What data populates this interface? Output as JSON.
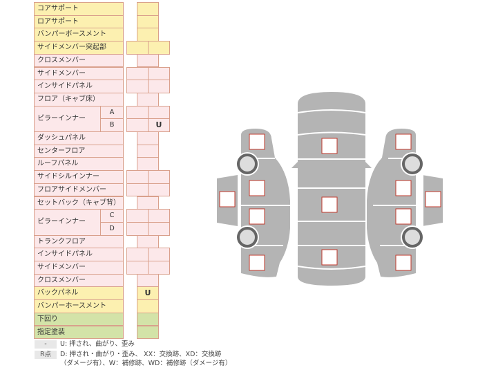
{
  "colors": {
    "yellow": "#fcf0b0",
    "pink": "#fce8ea",
    "green": "#d3e3a8",
    "border": "#d9a08c",
    "car": "#b4b4b4",
    "marker": "#c0392b"
  },
  "rows": [
    {
      "label": "コアサポート",
      "color": "yellow",
      "type": "single",
      "value": ""
    },
    {
      "label": "ロアサポート",
      "color": "yellow",
      "type": "single",
      "value": ""
    },
    {
      "label": "バンパーボースメント",
      "color": "yellow",
      "type": "single",
      "value": ""
    },
    {
      "label": "サイドメンバー突起部",
      "color": "yellow",
      "type": "double",
      "left": "",
      "right": ""
    },
    {
      "label": "クロスメンバー",
      "color": "pink",
      "type": "single",
      "value": ""
    },
    {
      "label": "サイドメンバー",
      "color": "pink",
      "type": "double",
      "left": "",
      "right": ""
    },
    {
      "label": "インサイドパネル",
      "color": "pink",
      "type": "double",
      "left": "",
      "right": ""
    },
    {
      "label": "フロア（キャブ床）",
      "color": "pink",
      "type": "single",
      "value": ""
    },
    {
      "label": "ピラーインナー",
      "color": "pink",
      "type": "pillar",
      "subs": [
        {
          "sub": "A",
          "left": "",
          "right": ""
        },
        {
          "sub": "B",
          "left": "",
          "right": "U"
        }
      ]
    },
    {
      "label": "ダッシュパネル",
      "color": "pink",
      "type": "single",
      "value": ""
    },
    {
      "label": "センターフロア",
      "color": "pink",
      "type": "single",
      "value": ""
    },
    {
      "label": "ルーフパネル",
      "color": "pink",
      "type": "single",
      "value": ""
    },
    {
      "label": "サイドシルインナー",
      "color": "pink",
      "type": "double",
      "left": "",
      "right": ""
    },
    {
      "label": "フロアサイドメンバー",
      "color": "pink",
      "type": "double",
      "left": "",
      "right": ""
    },
    {
      "label": "セットバック（キャブ背）",
      "color": "pink",
      "type": "single",
      "value": ""
    },
    {
      "label": "ピラーインナー",
      "color": "pink",
      "type": "pillar",
      "subs": [
        {
          "sub": "C",
          "left": "",
          "right": ""
        },
        {
          "sub": "D",
          "left": "",
          "right": ""
        }
      ]
    },
    {
      "label": "トランクフロア",
      "color": "pink",
      "type": "single",
      "value": ""
    },
    {
      "label": "インサイドパネル",
      "color": "pink",
      "type": "double",
      "left": "",
      "right": ""
    },
    {
      "label": "サイドメンバー",
      "color": "pink",
      "type": "double",
      "left": "",
      "right": ""
    },
    {
      "label": "クロスメンバー",
      "color": "pink",
      "type": "single",
      "value": ""
    },
    {
      "label": "バックパネル",
      "color": "yellow",
      "type": "single",
      "value": "U"
    },
    {
      "label": "バンパーホースメント",
      "color": "yellow",
      "type": "single",
      "value": ""
    },
    {
      "label": "下回り",
      "color": "green",
      "type": "single",
      "value": ""
    },
    {
      "label": "指定塗装",
      "color": "green",
      "type": "single",
      "value": ""
    }
  ],
  "legend": [
    {
      "key": "-",
      "text": "U: 押され、曲がり、歪み"
    },
    {
      "key": "R点",
      "text": "D: 押され・曲がり・歪み、 XX：交換跡、XD：交換跡",
      "text2": "（ダメージ有）、W：補修跡、WD：補修跡（ダメージ有）"
    }
  ]
}
